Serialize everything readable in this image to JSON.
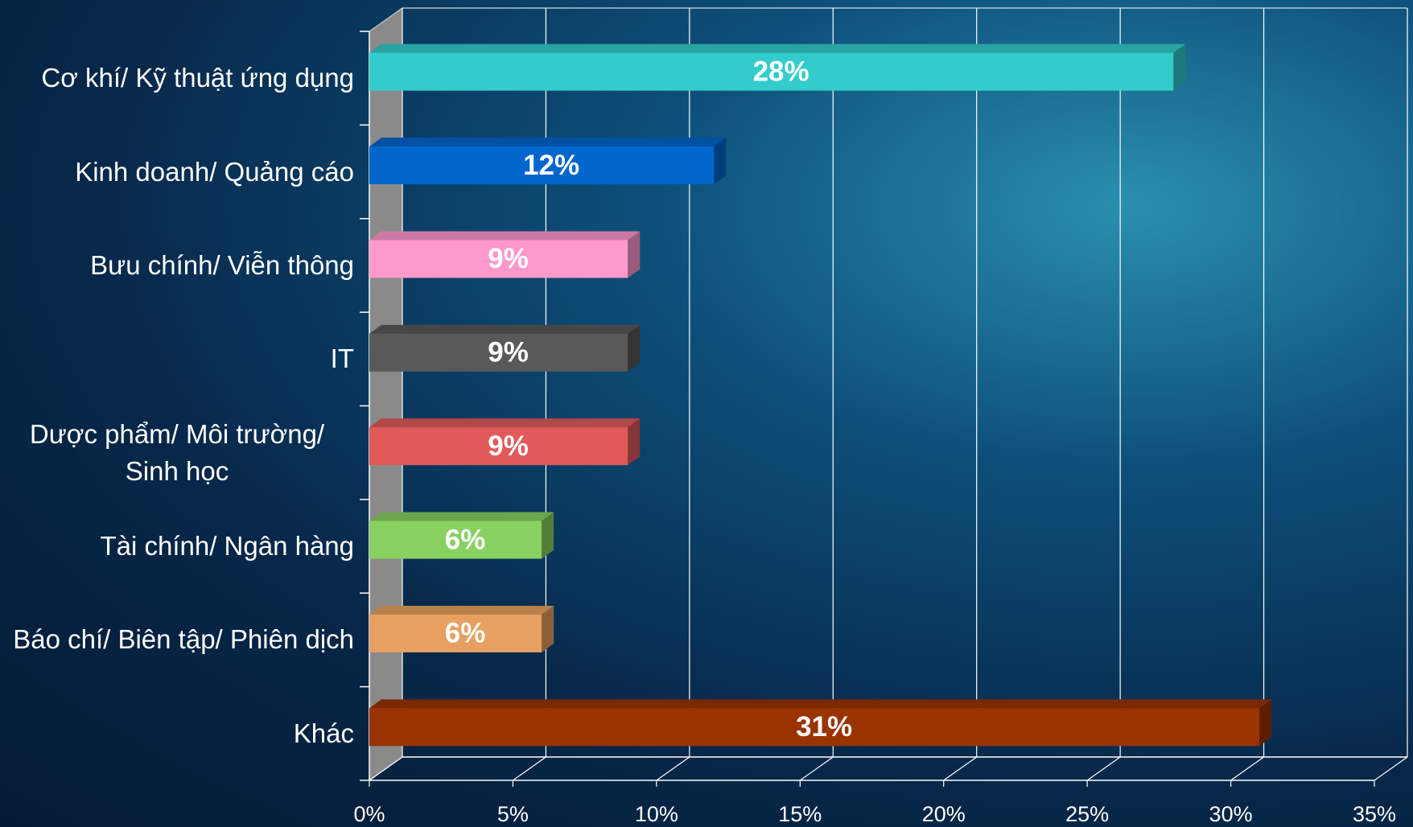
{
  "chart_data": {
    "type": "bar3d-horizontal",
    "categories": [
      "Cơ khí/ Kỹ thuật ứng dụng",
      "Kinh doanh/ Quảng cáo",
      "Bưu chính/ Viễn thông",
      "IT",
      "Dược phẩm/ Môi trường/ Sinh học",
      "Tài chính/ Ngân hàng",
      "Báo chí/ Biên tập/ Phiên dịch",
      "Khác"
    ],
    "values": [
      28,
      12,
      9,
      9,
      9,
      6,
      6,
      31
    ],
    "value_labels": [
      "28%",
      "12%",
      "9%",
      "9%",
      "9%",
      "6%",
      "6%",
      "31%"
    ],
    "colors": [
      "#33cccc",
      "#0066cc",
      "#ff99cc",
      "#595959",
      "#e05a5a",
      "#88d060",
      "#e8a060",
      "#993300"
    ],
    "xlim": [
      0,
      35
    ],
    "xticks": [
      {
        "value": 0,
        "label": "0%"
      },
      {
        "value": 5,
        "label": "5%"
      },
      {
        "value": 10,
        "label": "10%"
      },
      {
        "value": 15,
        "label": "15%"
      },
      {
        "value": 20,
        "label": "20%"
      },
      {
        "value": 25,
        "label": "25%"
      },
      {
        "value": 30,
        "label": "30%"
      },
      {
        "value": 35,
        "label": "35%"
      }
    ],
    "grid": true
  }
}
